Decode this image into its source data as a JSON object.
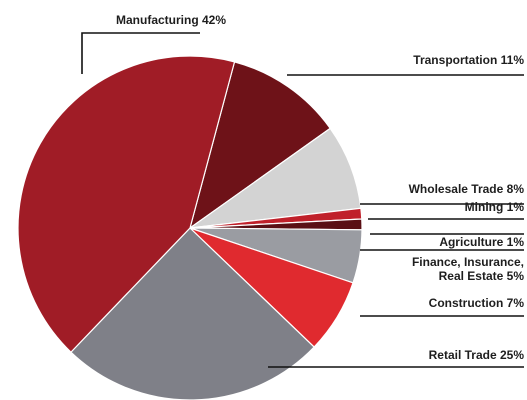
{
  "chart_data": {
    "type": "pie",
    "slices": [
      {
        "label": "Manufacturing 42%",
        "value": 42,
        "color": "#a01c26"
      },
      {
        "label": "Transportation 11%",
        "value": 11,
        "color": "#6e1218"
      },
      {
        "label": "Wholesale Trade 8%",
        "value": 8,
        "color": "#d3d3d3"
      },
      {
        "label": "Mining 1%",
        "value": 1,
        "color": "#c0202a"
      },
      {
        "label": "Agriculture 1%",
        "value": 1,
        "color": "#5a0f14"
      },
      {
        "label": "Finance, Insurance, Real Estate 5%",
        "label_lines": [
          "Finance, Insurance,",
          "Real Estate 5%"
        ],
        "value": 5,
        "color": "#9a9ca2"
      },
      {
        "label": "Construction 7%",
        "value": 7,
        "color": "#e02a2f"
      },
      {
        "label": "Retail Trade 25%",
        "value": 25,
        "color": "#7f8088"
      }
    ],
    "start_slice": "Transportation 11%",
    "direction": "clockwise",
    "legend": "none",
    "labels": "outside with leader lines"
  }
}
